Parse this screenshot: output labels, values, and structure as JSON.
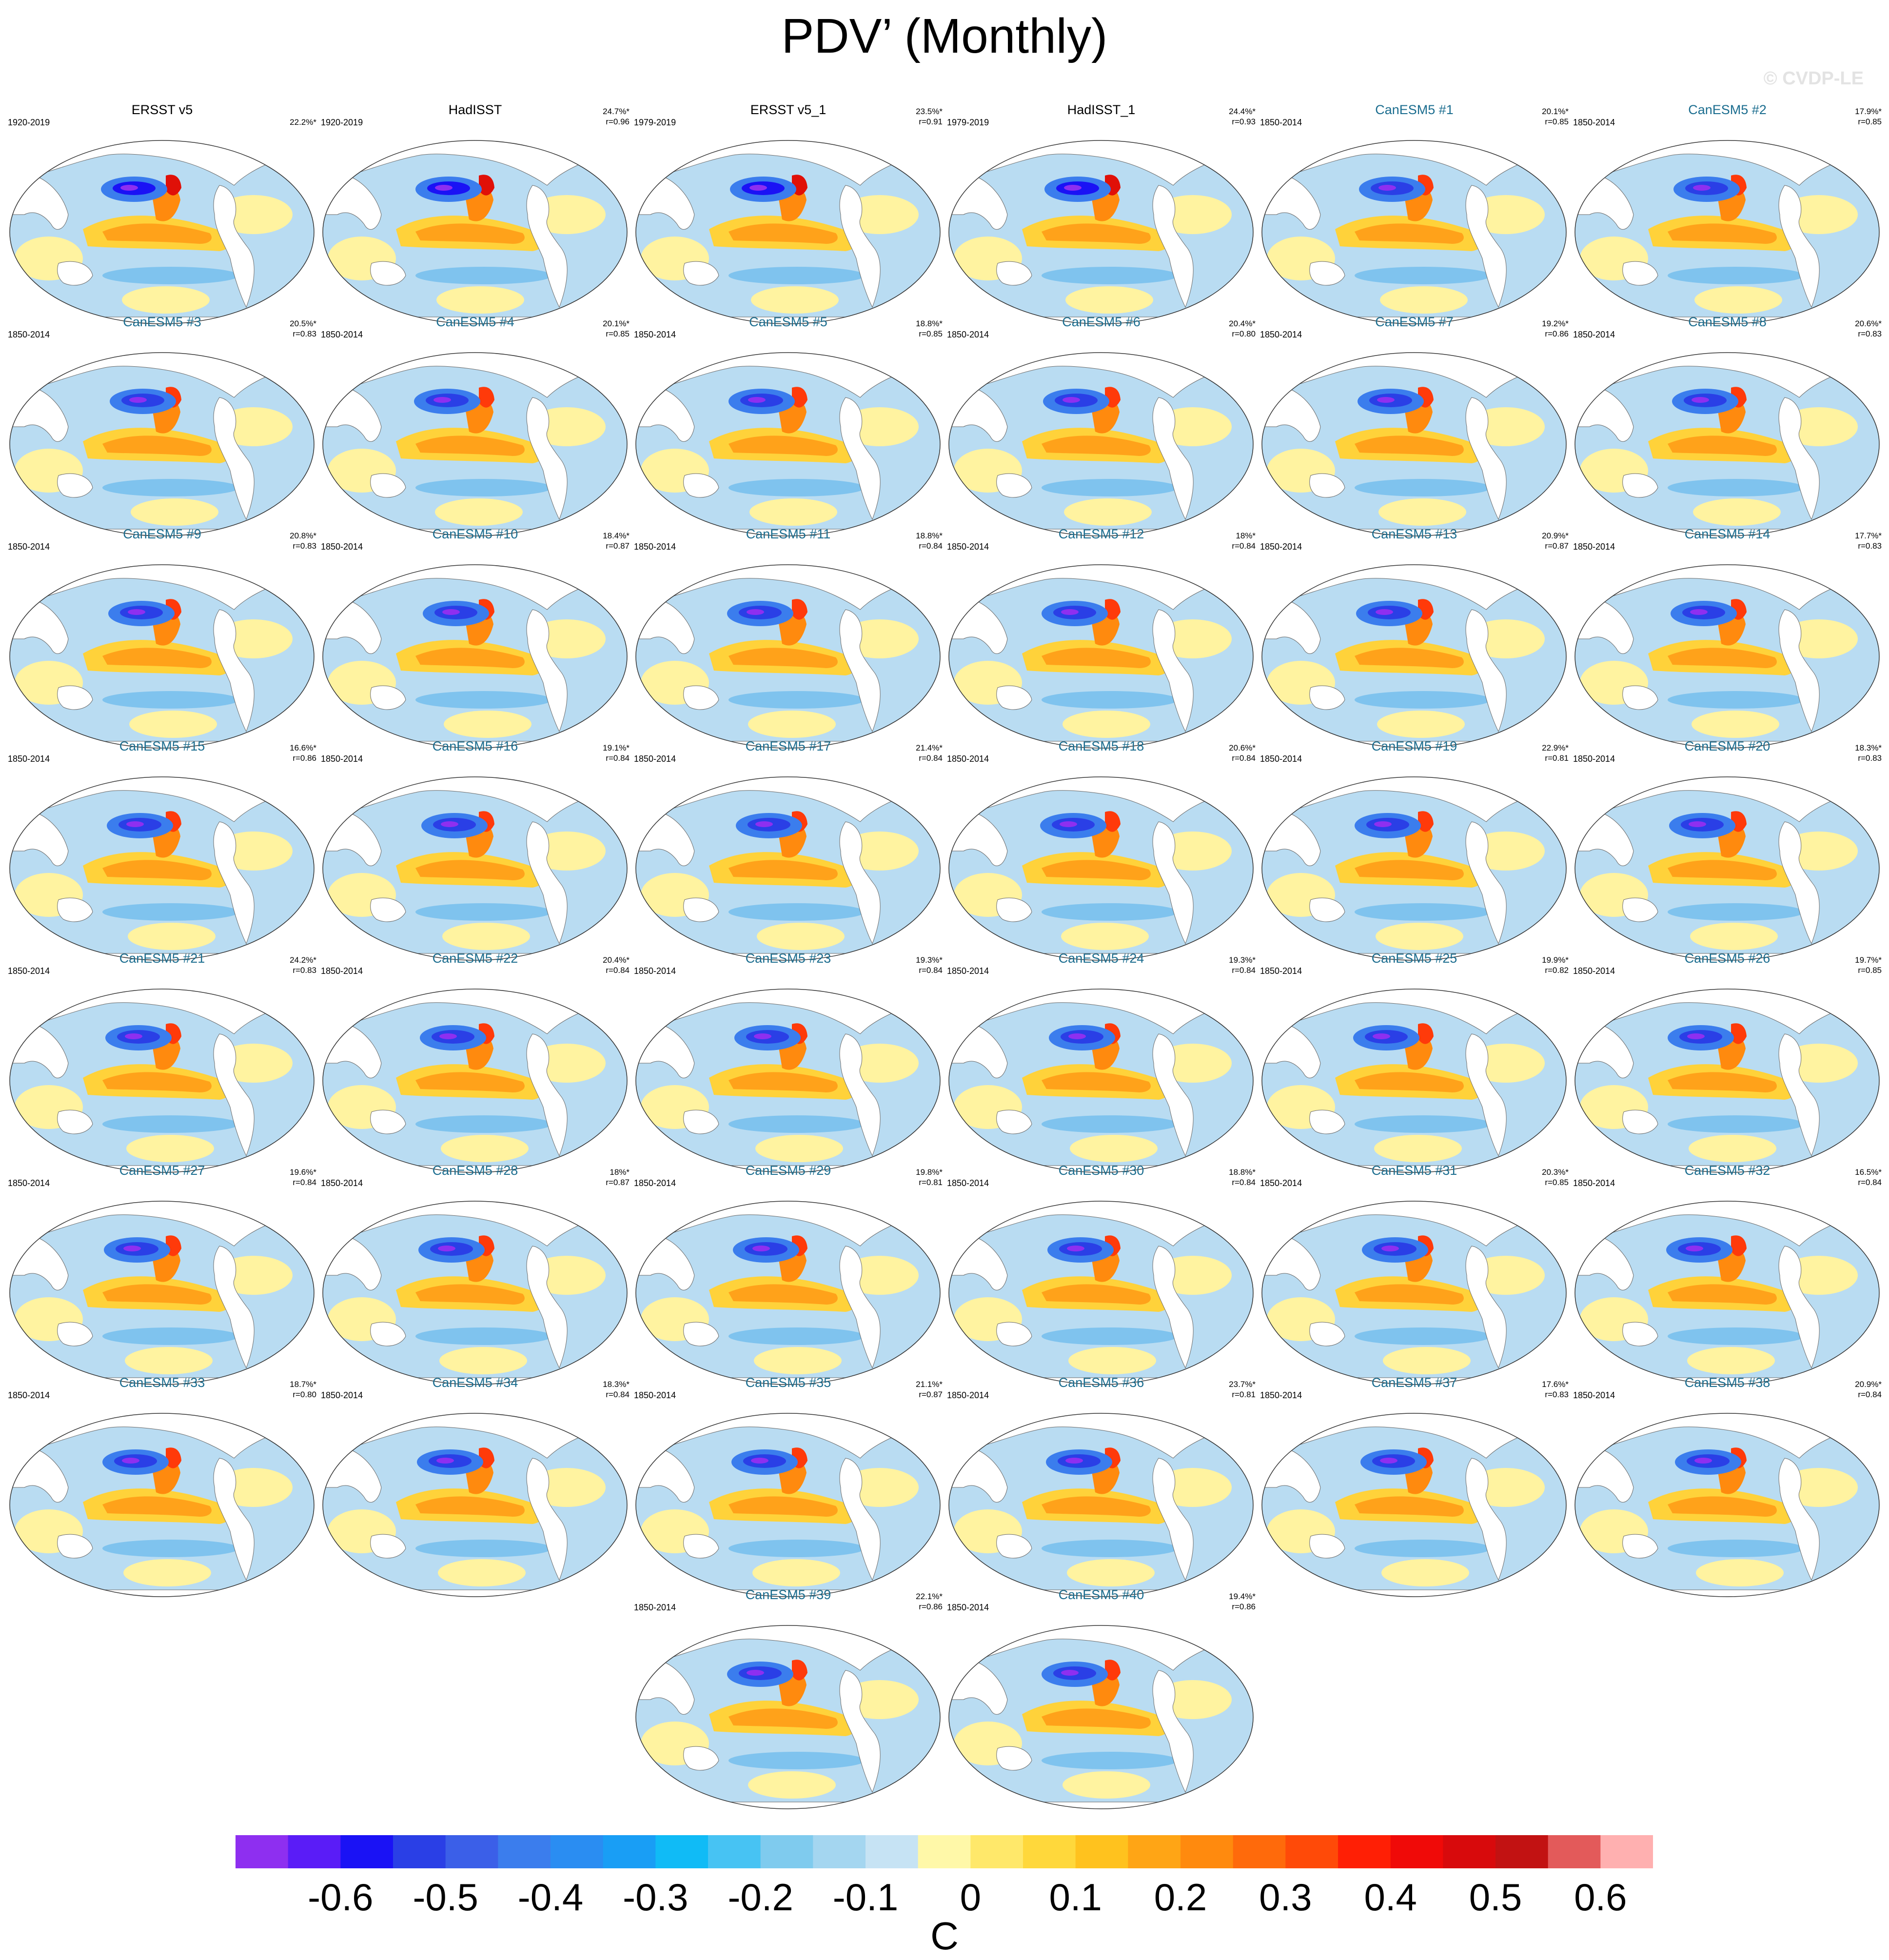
{
  "title": "PDV’ (Monthly)",
  "watermark": "© CVDP-LE",
  "colorbar": {
    "unit": "C",
    "tick_labels": [
      "-0.6",
      "-0.5",
      "-0.4",
      "-0.3",
      "-0.2",
      "-0.1",
      "0",
      "0.1",
      "0.2",
      "0.3",
      "0.4",
      "0.5",
      "0.6"
    ],
    "colors": [
      "#8e2ff0",
      "#5a1cf7",
      "#1a12f5",
      "#2a3fe6",
      "#3b5fe8",
      "#3b7ded",
      "#2a8df2",
      "#199ef5",
      "#10bbf6",
      "#47c3f3",
      "#7fcbee",
      "#a4d6f0",
      "#c6e3f4",
      "#fff8a8",
      "#ffe86a",
      "#ffd83b",
      "#ffc21e",
      "#ffa515",
      "#ff8a0e",
      "#ff6a0b",
      "#ff4a08",
      "#ff1f05",
      "#f00a08",
      "#d80a0c",
      "#c21212",
      "#e35a5a",
      "#ffb0b0"
    ]
  },
  "panels": [
    {
      "title": "ERSST v5",
      "period": "1920-2019",
      "pct": "22.2%*",
      "r": "",
      "obs": true
    },
    {
      "title": "HadISST",
      "period": "1920-2019",
      "pct": "24.7%*",
      "r": "r=0.96",
      "obs": true
    },
    {
      "title": "ERSST v5_1",
      "period": "1979-2019",
      "pct": "23.5%*",
      "r": "r=0.91",
      "obs": true
    },
    {
      "title": "HadISST_1",
      "period": "1979-2019",
      "pct": "24.4%*",
      "r": "r=0.93",
      "obs": true
    },
    {
      "title": "CanESM5 #1",
      "period": "1850-2014",
      "pct": "20.1%*",
      "r": "r=0.85"
    },
    {
      "title": "CanESM5 #2",
      "period": "1850-2014",
      "pct": "17.9%*",
      "r": "r=0.85"
    },
    {
      "title": "CanESM5 #3",
      "period": "1850-2014",
      "pct": "20.5%*",
      "r": "r=0.83"
    },
    {
      "title": "CanESM5 #4",
      "period": "1850-2014",
      "pct": "20.1%*",
      "r": "r=0.85"
    },
    {
      "title": "CanESM5 #5",
      "period": "1850-2014",
      "pct": "18.8%*",
      "r": "r=0.85"
    },
    {
      "title": "CanESM5 #6",
      "period": "1850-2014",
      "pct": "20.4%*",
      "r": "r=0.80"
    },
    {
      "title": "CanESM5 #7",
      "period": "1850-2014",
      "pct": "19.2%*",
      "r": "r=0.86"
    },
    {
      "title": "CanESM5 #8",
      "period": "1850-2014",
      "pct": "20.6%*",
      "r": "r=0.83"
    },
    {
      "title": "CanESM5 #9",
      "period": "1850-2014",
      "pct": "20.8%*",
      "r": "r=0.83"
    },
    {
      "title": "CanESM5 #10",
      "period": "1850-2014",
      "pct": "18.4%*",
      "r": "r=0.87"
    },
    {
      "title": "CanESM5 #11",
      "period": "1850-2014",
      "pct": "18.8%*",
      "r": "r=0.84"
    },
    {
      "title": "CanESM5 #12",
      "period": "1850-2014",
      "pct": "18%*",
      "r": "r=0.84"
    },
    {
      "title": "CanESM5 #13",
      "period": "1850-2014",
      "pct": "20.9%*",
      "r": "r=0.87"
    },
    {
      "title": "CanESM5 #14",
      "period": "1850-2014",
      "pct": "17.7%*",
      "r": "r=0.83"
    },
    {
      "title": "CanESM5 #15",
      "period": "1850-2014",
      "pct": "16.6%*",
      "r": "r=0.86"
    },
    {
      "title": "CanESM5 #16",
      "period": "1850-2014",
      "pct": "19.1%*",
      "r": "r=0.84"
    },
    {
      "title": "CanESM5 #17",
      "period": "1850-2014",
      "pct": "21.4%*",
      "r": "r=0.84"
    },
    {
      "title": "CanESM5 #18",
      "period": "1850-2014",
      "pct": "20.6%*",
      "r": "r=0.84"
    },
    {
      "title": "CanESM5 #19",
      "period": "1850-2014",
      "pct": "22.9%*",
      "r": "r=0.81"
    },
    {
      "title": "CanESM5 #20",
      "period": "1850-2014",
      "pct": "18.3%*",
      "r": "r=0.83"
    },
    {
      "title": "CanESM5 #21",
      "period": "1850-2014",
      "pct": "24.2%*",
      "r": "r=0.83"
    },
    {
      "title": "CanESM5 #22",
      "period": "1850-2014",
      "pct": "20.4%*",
      "r": "r=0.84"
    },
    {
      "title": "CanESM5 #23",
      "period": "1850-2014",
      "pct": "19.3%*",
      "r": "r=0.84"
    },
    {
      "title": "CanESM5 #24",
      "period": "1850-2014",
      "pct": "19.3%*",
      "r": "r=0.84"
    },
    {
      "title": "CanESM5 #25",
      "period": "1850-2014",
      "pct": "19.9%*",
      "r": "r=0.82"
    },
    {
      "title": "CanESM5 #26",
      "period": "1850-2014",
      "pct": "19.7%*",
      "r": "r=0.85"
    },
    {
      "title": "CanESM5 #27",
      "period": "1850-2014",
      "pct": "19.6%*",
      "r": "r=0.84"
    },
    {
      "title": "CanESM5 #28",
      "period": "1850-2014",
      "pct": "18%*",
      "r": "r=0.87"
    },
    {
      "title": "CanESM5 #29",
      "period": "1850-2014",
      "pct": "19.8%*",
      "r": "r=0.81"
    },
    {
      "title": "CanESM5 #30",
      "period": "1850-2014",
      "pct": "18.8%*",
      "r": "r=0.84"
    },
    {
      "title": "CanESM5 #31",
      "period": "1850-2014",
      "pct": "20.3%*",
      "r": "r=0.85"
    },
    {
      "title": "CanESM5 #32",
      "period": "1850-2014",
      "pct": "16.5%*",
      "r": "r=0.84"
    },
    {
      "title": "CanESM5 #33",
      "period": "1850-2014",
      "pct": "18.7%*",
      "r": "r=0.80"
    },
    {
      "title": "CanESM5 #34",
      "period": "1850-2014",
      "pct": "18.3%*",
      "r": "r=0.84"
    },
    {
      "title": "CanESM5 #35",
      "period": "1850-2014",
      "pct": "21.1%*",
      "r": "r=0.87"
    },
    {
      "title": "CanESM5 #36",
      "period": "1850-2014",
      "pct": "23.7%*",
      "r": "r=0.81"
    },
    {
      "title": "CanESM5 #37",
      "period": "1850-2014",
      "pct": "17.6%*",
      "r": "r=0.83"
    },
    {
      "title": "CanESM5 #38",
      "period": "1850-2014",
      "pct": "20.9%*",
      "r": "r=0.84"
    },
    {
      "title": "CanESM5 #39",
      "period": "1850-2014",
      "pct": "22.1%*",
      "r": "r=0.86"
    },
    {
      "title": "CanESM5 #40",
      "period": "1850-2014",
      "pct": "19.4%*",
      "r": "r=0.86"
    }
  ]
}
